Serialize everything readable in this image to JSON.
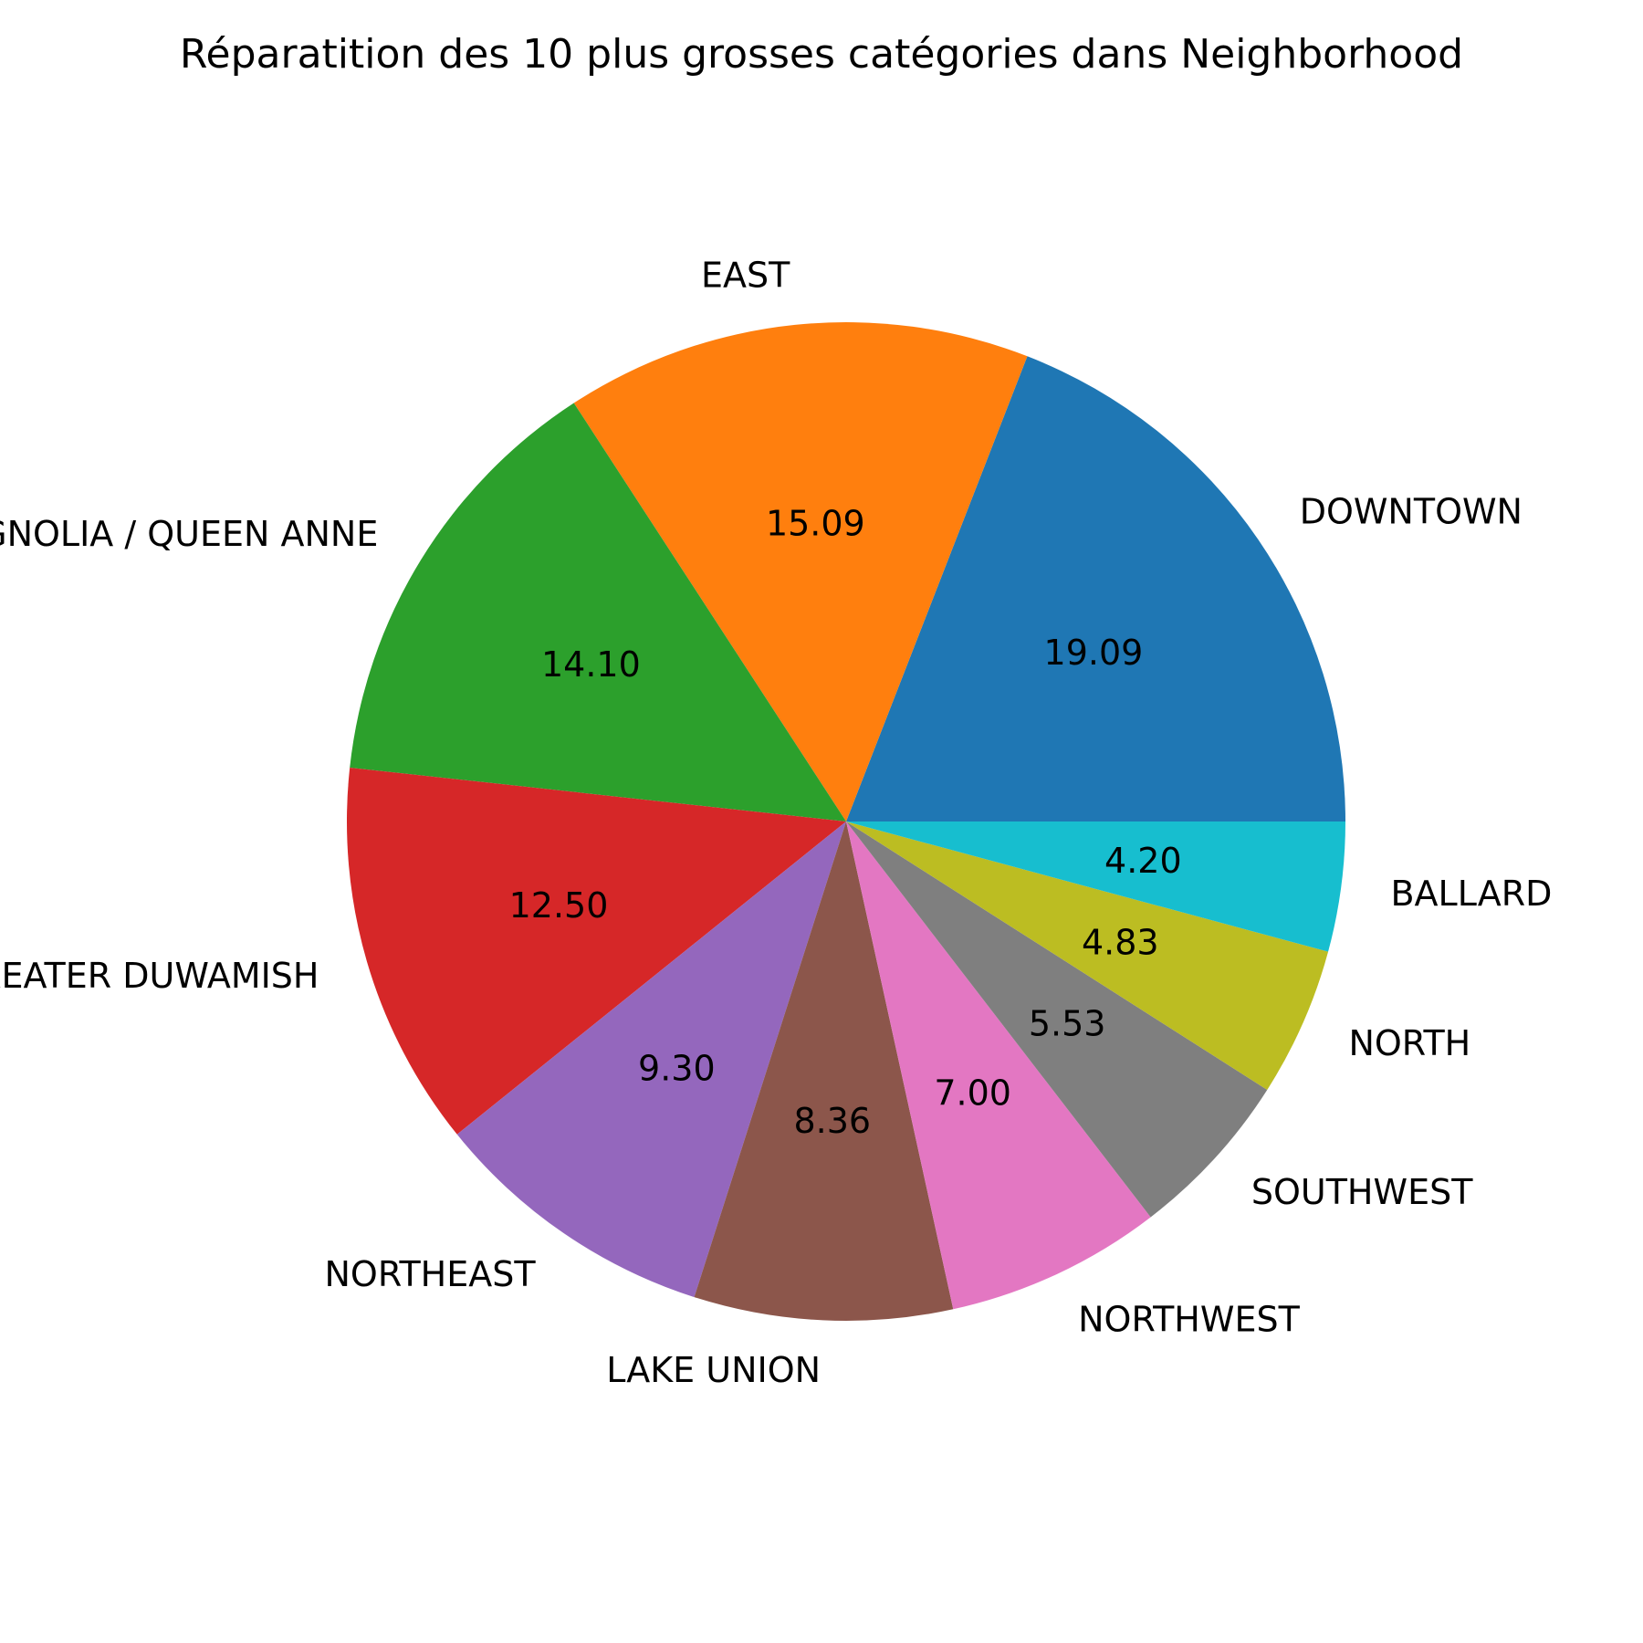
{
  "chart_data": {
    "type": "pie",
    "title": "Réparatition des 10 plus grosses catégories dans Neighborhood",
    "categories": [
      "DOWNTOWN",
      "EAST",
      "MAGNOLIA / QUEEN ANNE",
      "GREATER DUWAMISH",
      "NORTHEAST",
      "LAKE UNION",
      "NORTHWEST",
      "SOUTHWEST",
      "NORTH",
      "BALLARD"
    ],
    "values": [
      19.09,
      15.09,
      14.1,
      12.5,
      9.3,
      8.36,
      7.0,
      5.53,
      4.83,
      4.2
    ],
    "value_labels": [
      "19.09",
      "15.09",
      "14.10",
      "12.50",
      "9.30",
      "8.36",
      "7.00",
      "5.53",
      "4.83",
      "4.20"
    ],
    "colors": [
      "#1f77b4",
      "#ff7f0e",
      "#2ca02c",
      "#d62728",
      "#9467bd",
      "#8c564b",
      "#e377c2",
      "#7f7f7f",
      "#bcbd22",
      "#17becf"
    ],
    "start_angle_deg": 0,
    "direction": "counterclockwise",
    "legend": "none"
  }
}
